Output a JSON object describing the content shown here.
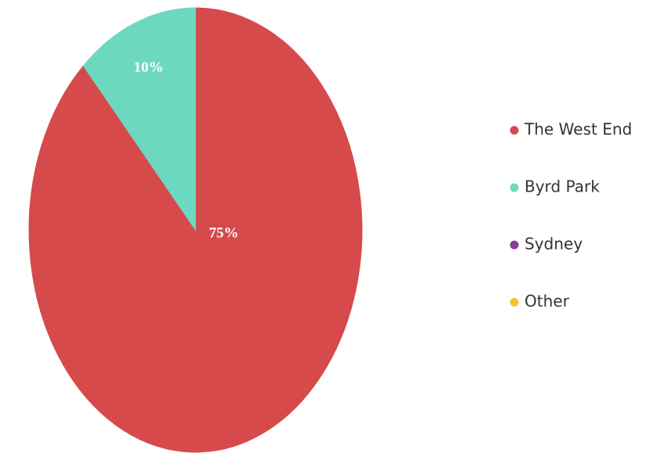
{
  "chart_data": {
    "type": "pie",
    "categories": [
      "The West End",
      "Byrd Park",
      "Sydney",
      "Other"
    ],
    "values": [
      75,
      10,
      0,
      0
    ],
    "value_labels": [
      "75%",
      "10%",
      null,
      null
    ],
    "colors": [
      "#d64a4b",
      "#6dd8c0",
      "#8b3a9c",
      "#f2c230"
    ],
    "legend": "right"
  }
}
